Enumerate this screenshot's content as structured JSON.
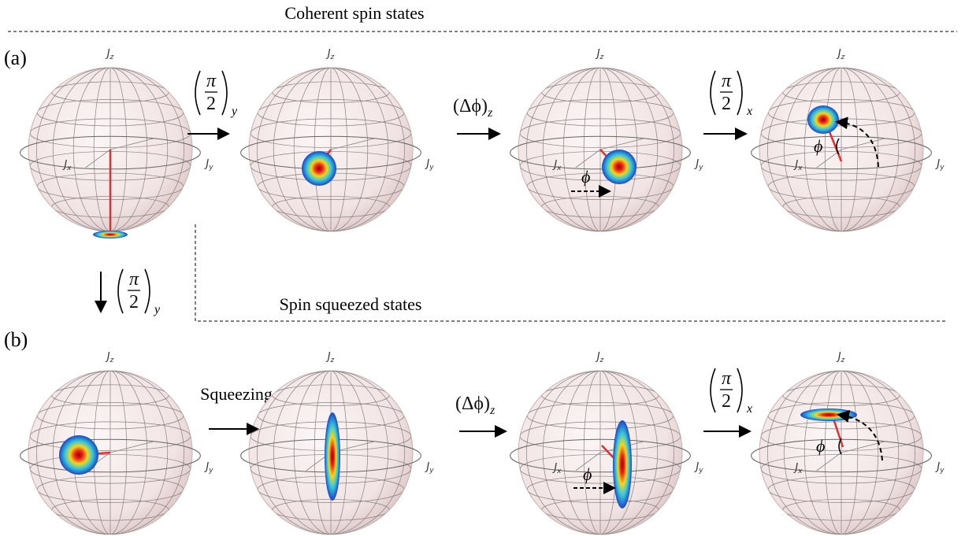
{
  "header": {
    "title": "Coherent spin states"
  },
  "subheader": {
    "title": "Spin squeezed states"
  },
  "panels": [
    {
      "label": "(a)"
    },
    {
      "label": "(b)"
    }
  ],
  "axes": {
    "symbol": "J",
    "z": "z",
    "y": "y",
    "x": "x"
  },
  "operations": {
    "numerator": "π",
    "denominator": "2",
    "sub_y": "y",
    "sub_x": "x",
    "phase": "(Δϕ)",
    "phase_sub": "z",
    "squeezing": "Squeezing"
  },
  "angle": "ϕ"
}
